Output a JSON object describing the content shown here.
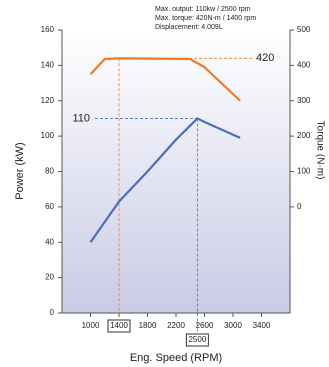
{
  "chart_data": {
    "type": "line",
    "annotations": [
      "Max. output: 110kw / 2500 rpm",
      "Max. torque: 420N-m / 1400 rpm",
      "Displacement: 4.009L"
    ],
    "xlabel": "Eng. Speed (RPM)",
    "ylabel": "Power (kW)",
    "y2label": "Torque (N·m)",
    "xlim": [
      600,
      3800
    ],
    "xticks": [
      1000,
      1400,
      1800,
      2200,
      2600,
      3000,
      3400
    ],
    "ylim": [
      0,
      160
    ],
    "yticks": [
      0,
      20,
      40,
      60,
      80,
      100,
      120,
      140,
      160
    ],
    "y2lim": [
      -300,
      500
    ],
    "y2ticks": [
      0,
      100,
      200,
      300,
      400,
      500
    ],
    "series": [
      {
        "name": "Power",
        "color": "#4a6fb8",
        "x": [
          1000,
          1400,
          1800,
          2200,
          2500,
          2600,
          3100
        ],
        "values": [
          40,
          63,
          80,
          98,
          110,
          108,
          99
        ]
      },
      {
        "name": "Torque",
        "color": "#f07a2a",
        "axis": "y2",
        "x": [
          1000,
          1200,
          1400,
          2400,
          2600,
          3100
        ],
        "values": [
          375,
          418,
          420,
          418,
          395,
          300
        ]
      }
    ],
    "reference_lines": [
      {
        "series": 1,
        "x": 1400,
        "y": 420,
        "y_label": "420"
      },
      {
        "series": 0,
        "x": 2500,
        "y": 110,
        "y_label": "110",
        "x_label": "2500"
      }
    ]
  }
}
